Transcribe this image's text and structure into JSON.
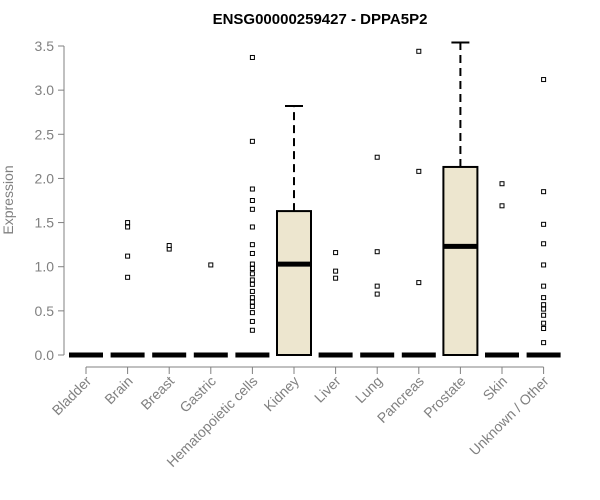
{
  "chart_data": {
    "type": "boxplot",
    "title": "ENSG00000259427 - DPPA5P2",
    "xlabel": "",
    "ylabel": "Expression",
    "ylim": [
      0,
      3.5
    ],
    "y_ticks": [
      "0.0",
      "0.5",
      "1.0",
      "1.5",
      "2.0",
      "2.5",
      "3.0",
      "3.5"
    ],
    "grid": false,
    "colors": {
      "box_fill": "#ede6cf",
      "box_stroke": "#000000",
      "axis": "#808080",
      "title": "#000000"
    },
    "categories": [
      "Bladder",
      "Brain",
      "Breast",
      "Gastric",
      "Hematopoietic cells",
      "Kidney",
      "Liver",
      "Lung",
      "Pancreas",
      "Prostate",
      "Skin",
      "Unknown / Other"
    ],
    "boxes": [
      {
        "category": "Bladder",
        "min": 0,
        "q1": 0,
        "median": 0,
        "q3": 0,
        "max": 0,
        "outliers": []
      },
      {
        "category": "Brain",
        "min": 0,
        "q1": 0,
        "median": 0,
        "q3": 0,
        "max": 0,
        "outliers": [
          0.88,
          1.12,
          1.45,
          1.5
        ]
      },
      {
        "category": "Breast",
        "min": 0,
        "q1": 0,
        "median": 0,
        "q3": 0,
        "max": 0,
        "outliers": [
          1.2,
          1.24
        ]
      },
      {
        "category": "Gastric",
        "min": 0,
        "q1": 0,
        "median": 0,
        "q3": 0,
        "max": 0,
        "outliers": [
          1.02
        ]
      },
      {
        "category": "Hematopoietic cells",
        "min": 0,
        "q1": 0,
        "median": 0,
        "q3": 0,
        "max": 0,
        "outliers": [
          0.28,
          0.38,
          0.48,
          0.55,
          0.6,
          0.65,
          0.72,
          0.8,
          0.85,
          0.92,
          0.98,
          1.03,
          1.15,
          1.25,
          1.45,
          1.65,
          1.75,
          1.88,
          2.42,
          3.37
        ]
      },
      {
        "category": "Kidney",
        "min": 0,
        "q1": 0,
        "median": 1.03,
        "q3": 1.63,
        "max": 2.82,
        "outliers": []
      },
      {
        "category": "Liver",
        "min": 0,
        "q1": 0,
        "median": 0,
        "q3": 0,
        "max": 0,
        "outliers": [
          0.87,
          0.95,
          1.16
        ]
      },
      {
        "category": "Lung",
        "min": 0,
        "q1": 0,
        "median": 0,
        "q3": 0,
        "max": 0,
        "outliers": [
          0.69,
          0.78,
          1.17,
          2.24
        ]
      },
      {
        "category": "Pancreas",
        "min": 0,
        "q1": 0,
        "median": 0,
        "q3": 0,
        "max": 0,
        "outliers": [
          0.82,
          2.08,
          3.44
        ]
      },
      {
        "category": "Prostate",
        "min": 0,
        "q1": 0,
        "median": 1.23,
        "q3": 2.13,
        "max": 3.54,
        "outliers": []
      },
      {
        "category": "Skin",
        "min": 0,
        "q1": 0,
        "median": 0,
        "q3": 0,
        "max": 0,
        "outliers": [
          1.69,
          1.94
        ]
      },
      {
        "category": "Unknown / Other",
        "min": 0,
        "q1": 0,
        "median": 0,
        "q3": 0,
        "max": 0,
        "outliers": [
          0.14,
          0.3,
          0.36,
          0.45,
          0.52,
          0.57,
          0.65,
          0.78,
          1.02,
          1.26,
          1.48,
          1.85,
          3.12
        ]
      }
    ]
  }
}
